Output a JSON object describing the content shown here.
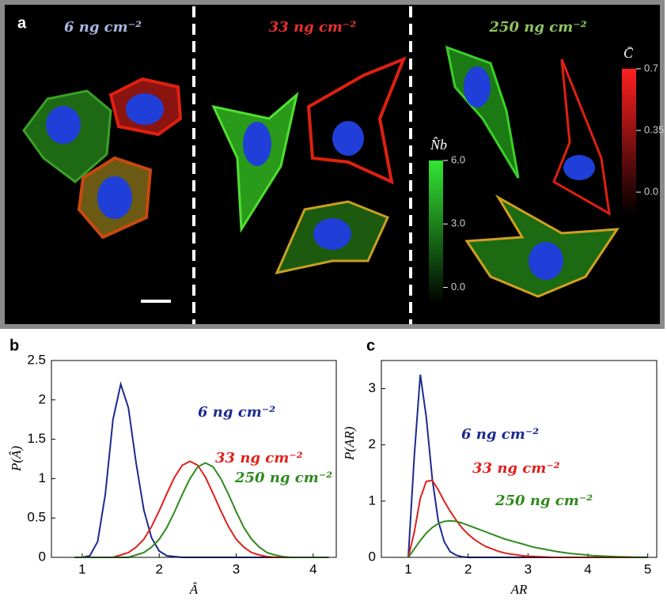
{
  "panel_a": {
    "label": "a",
    "conditions": [
      "6 ng cm⁻²",
      "33 ng cm⁻²",
      "250 ng cm⁻²"
    ],
    "colorbar_nb": {
      "label": "N̂b",
      "lim": [
        -0.8,
        6
      ],
      "ticks": [
        {
          "value": 6,
          "label": "6.0"
        },
        {
          "value": 3,
          "label": "3.0"
        },
        {
          "value": 0,
          "label": "0.0"
        }
      ]
    },
    "colorbar_c": {
      "label": "C̄",
      "lim": [
        -0.13,
        0.7
      ],
      "ticks": [
        {
          "value": 0.7,
          "label": "0.7"
        },
        0.35,
        {
          "value": 0,
          "label": "0.0"
        }
      ]
    }
  },
  "chart_data": [
    {
      "type": "line",
      "panel": "b",
      "xlabel": "Â",
      "ylabel": "P(Â)",
      "xlim": [
        0.6,
        4.3
      ],
      "xticks": [
        1,
        2,
        3,
        4
      ],
      "ylim": [
        0,
        2.5
      ],
      "yticks": [
        0,
        0.5,
        1,
        1.5,
        2,
        2.5
      ],
      "x": [
        0.9,
        1.0,
        1.1,
        1.2,
        1.3,
        1.4,
        1.5,
        1.6,
        1.7,
        1.8,
        1.9,
        2.0,
        2.1,
        2.2,
        2.3,
        2.4,
        2.5,
        2.6,
        2.7,
        2.8,
        2.9,
        3.0,
        3.1,
        3.2,
        3.3,
        3.4,
        3.5,
        3.6,
        3.7,
        3.8,
        3.9,
        4.0,
        4.1,
        4.2
      ],
      "series": [
        {
          "name": "6 ng cm⁻²",
          "color": "#1c2a90",
          "values": [
            0,
            0,
            0.02,
            0.2,
            0.8,
            1.75,
            2.2,
            1.9,
            1.2,
            0.6,
            0.25,
            0.08,
            0.02,
            0.01,
            0,
            0,
            0,
            0,
            0,
            0,
            0,
            0,
            0,
            0,
            0,
            0,
            0,
            0,
            0,
            0,
            0,
            0,
            0,
            0
          ]
        },
        {
          "name": "33 ng cm⁻²",
          "color": "#e0201c",
          "values": [
            0,
            0,
            0,
            0,
            0,
            0,
            0.03,
            0.06,
            0.13,
            0.23,
            0.39,
            0.59,
            0.81,
            1.02,
            1.17,
            1.22,
            1.17,
            1.02,
            0.81,
            0.59,
            0.39,
            0.23,
            0.13,
            0.06,
            0.03,
            0.01,
            0,
            0,
            0,
            0,
            0,
            0,
            0,
            0
          ]
        },
        {
          "name": "250 ng cm⁻²",
          "color": "#2f8a1e",
          "values": [
            0,
            0,
            0,
            0,
            0,
            0,
            0,
            0,
            0.03,
            0.06,
            0.13,
            0.23,
            0.38,
            0.58,
            0.8,
            1.0,
            1.15,
            1.2,
            1.15,
            1.0,
            0.8,
            0.58,
            0.38,
            0.23,
            0.13,
            0.06,
            0.03,
            0.01,
            0,
            0,
            0,
            0,
            0,
            0
          ]
        }
      ]
    },
    {
      "type": "line",
      "panel": "c",
      "xlabel": "AR",
      "ylabel": "P(AR)",
      "xlim": [
        0.55,
        5.15
      ],
      "xticks": [
        1,
        2,
        3,
        4,
        5
      ],
      "ylim": [
        0,
        3.5
      ],
      "yticks": [
        0,
        1,
        2,
        3
      ],
      "x": [
        1.0,
        1.1,
        1.2,
        1.3,
        1.4,
        1.5,
        1.6,
        1.7,
        1.8,
        1.9,
        2.0,
        2.1,
        2.2,
        2.3,
        2.4,
        2.5,
        2.6,
        2.7,
        2.8,
        2.9,
        3.0,
        3.1,
        3.2,
        3.3,
        3.4,
        3.5,
        3.6,
        3.7,
        3.8,
        3.9,
        4.0,
        4.1,
        4.2,
        4.3,
        4.4,
        4.5,
        4.6,
        4.7,
        4.8,
        4.9,
        5.0
      ],
      "series": [
        {
          "name": "6 ng cm⁻²",
          "color": "#1c2a90",
          "values": [
            0,
            1.8,
            3.25,
            2.5,
            1.4,
            0.65,
            0.28,
            0.1,
            0.04,
            0.01,
            0,
            0,
            0,
            0,
            0,
            0,
            0,
            0,
            0,
            0,
            0,
            0,
            0,
            0,
            0,
            0,
            0,
            0,
            0,
            0,
            0,
            0,
            0,
            0,
            0,
            0,
            0,
            0,
            0,
            0,
            0
          ]
        },
        {
          "name": "33 ng cm⁻²",
          "color": "#e0201c",
          "values": [
            0,
            0.45,
            1.05,
            1.35,
            1.37,
            1.2,
            1.0,
            0.82,
            0.66,
            0.52,
            0.41,
            0.32,
            0.25,
            0.19,
            0.15,
            0.11,
            0.08,
            0.06,
            0.045,
            0.03,
            0.02,
            0.015,
            0.01,
            0.005,
            0,
            0,
            0,
            0,
            0,
            0,
            0,
            0,
            0,
            0,
            0,
            0,
            0,
            0,
            0,
            0,
            0
          ]
        },
        {
          "name": "250 ng cm⁻²",
          "color": "#2f8a1e",
          "values": [
            0,
            0.15,
            0.3,
            0.43,
            0.53,
            0.6,
            0.64,
            0.65,
            0.64,
            0.61,
            0.57,
            0.53,
            0.49,
            0.45,
            0.41,
            0.37,
            0.33,
            0.3,
            0.27,
            0.24,
            0.21,
            0.18,
            0.16,
            0.14,
            0.12,
            0.1,
            0.085,
            0.07,
            0.06,
            0.05,
            0.04,
            0.03,
            0.025,
            0.02,
            0.015,
            0.01,
            0.008,
            0.005,
            0.003,
            0.002,
            0.001
          ]
        }
      ]
    }
  ]
}
